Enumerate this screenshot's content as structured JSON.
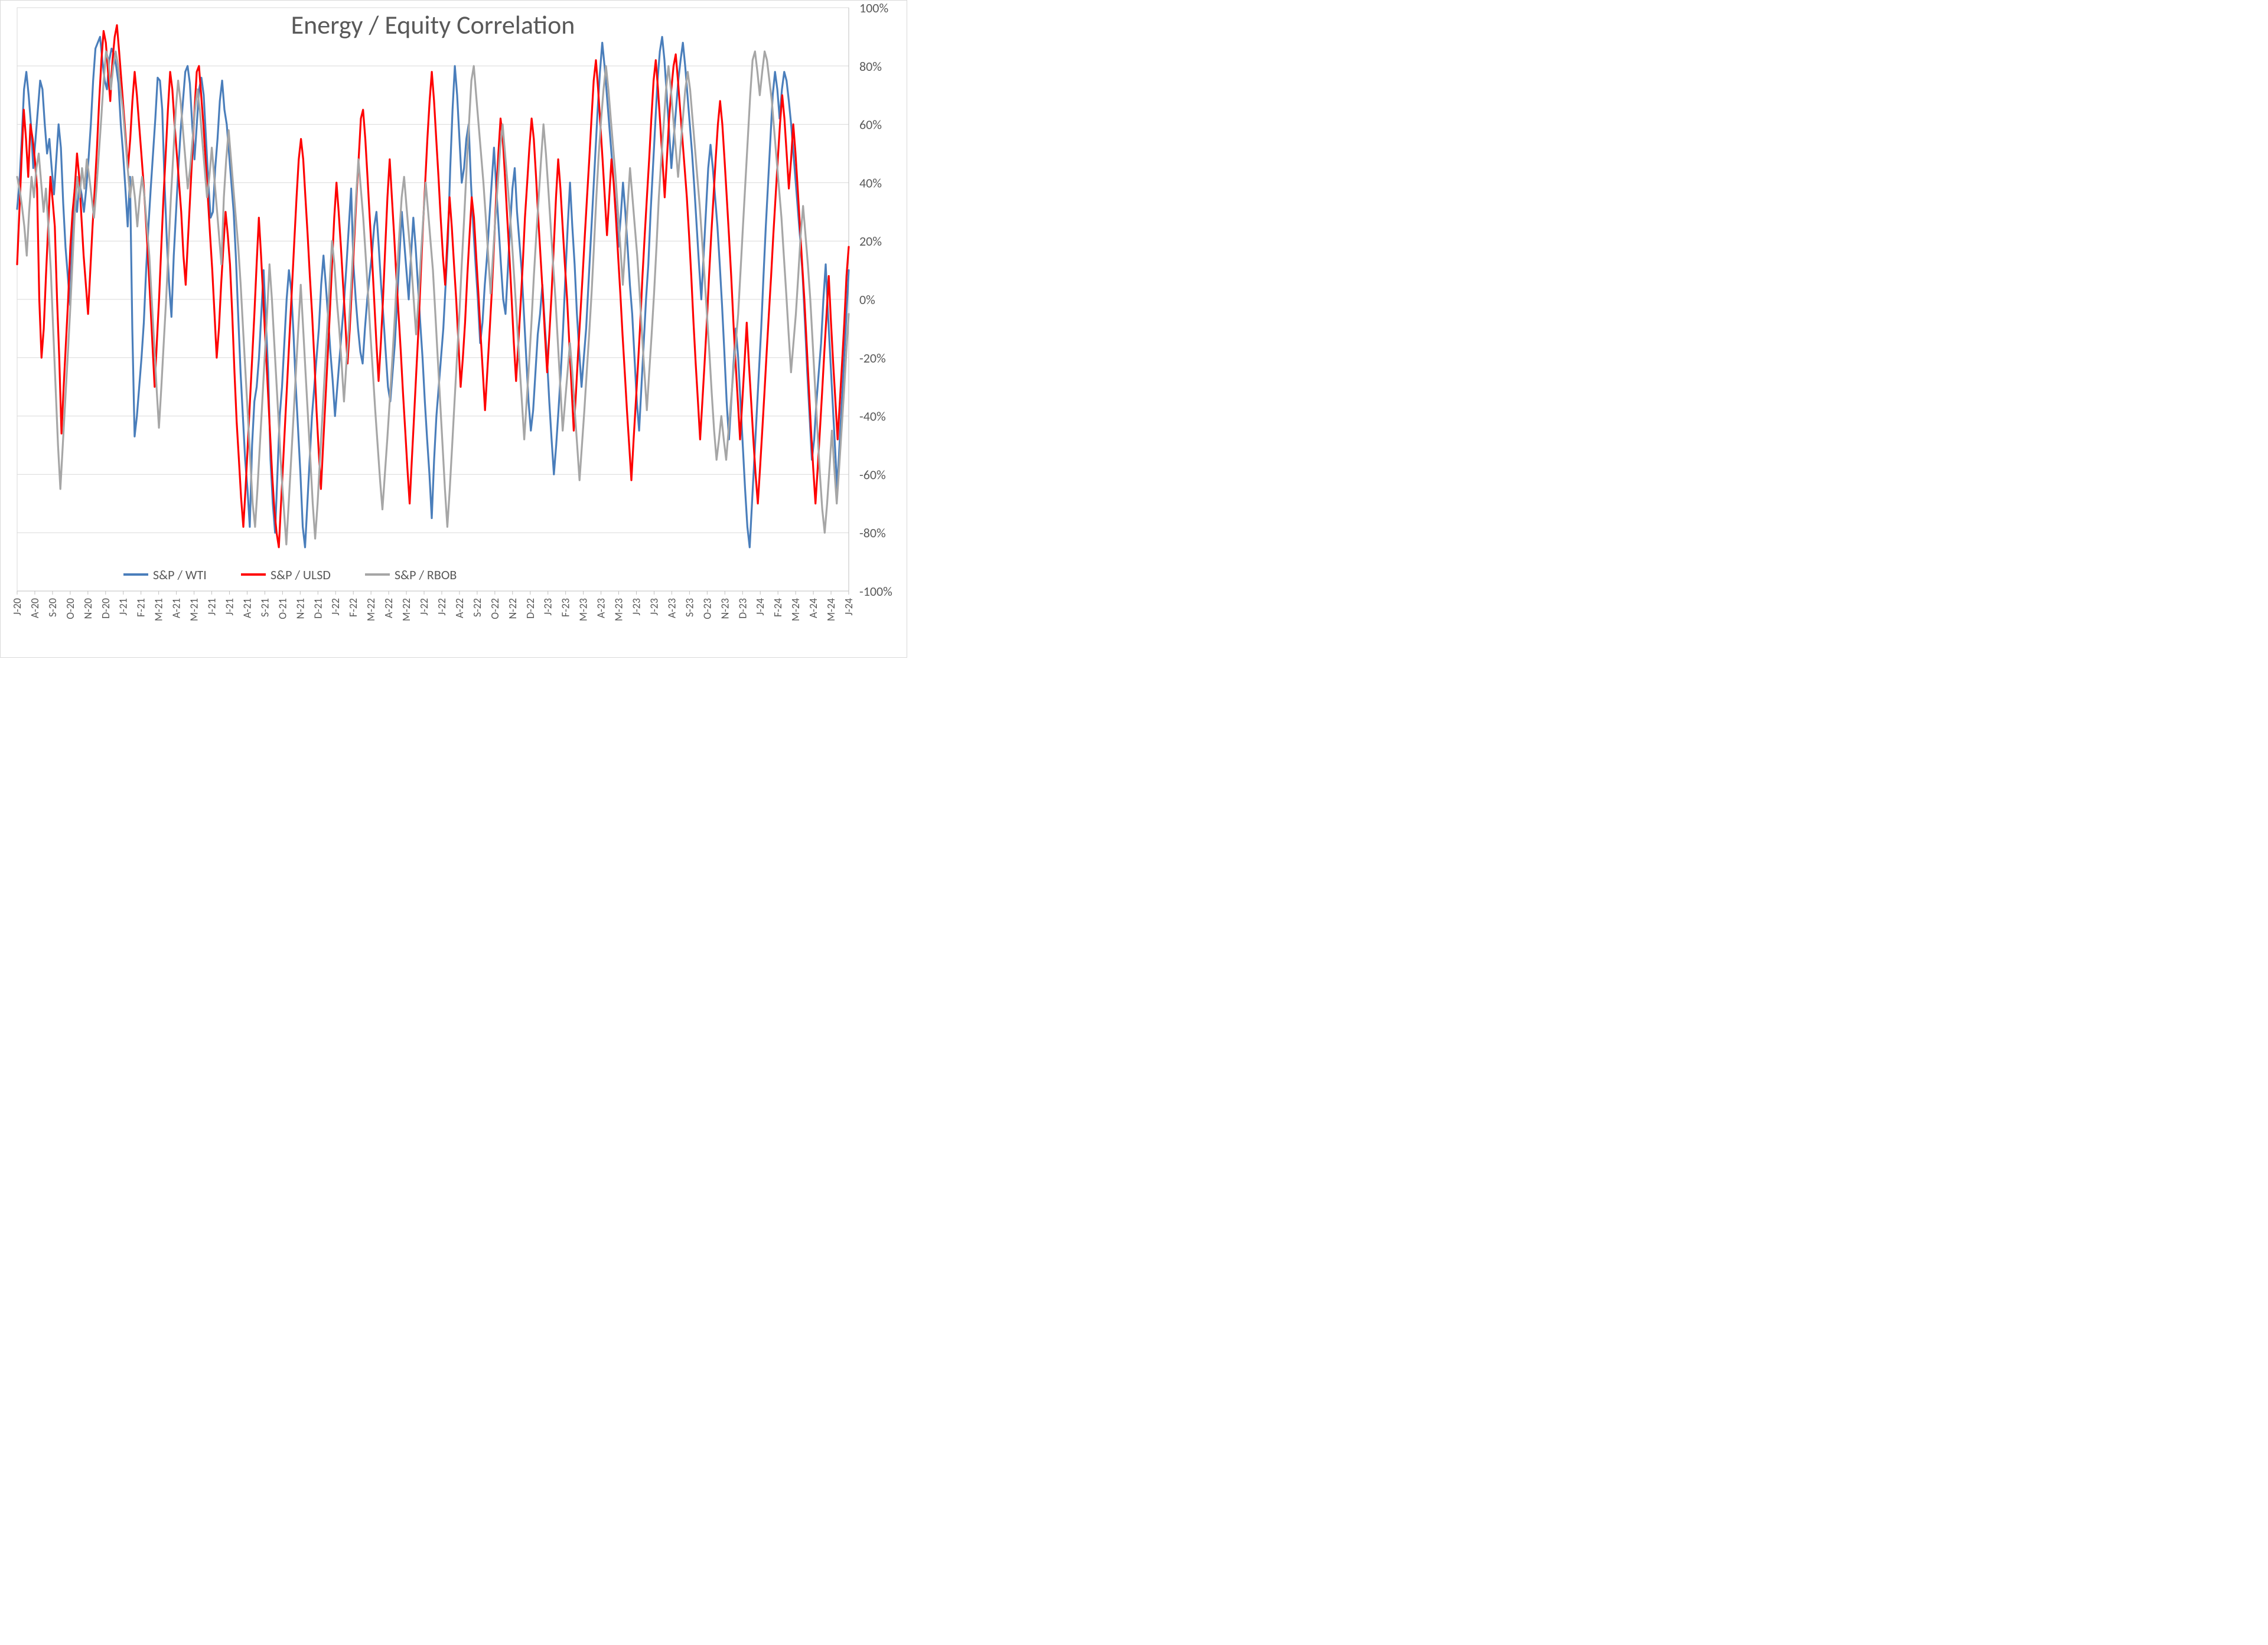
{
  "chart": {
    "type": "line",
    "title": "Energy / Equity Correlation",
    "title_fontsize": 44,
    "title_color": "#595959",
    "background_color": "#ffffff",
    "plot_border_color": "#d9d9d9",
    "grid_color": "#d9d9d9",
    "axis_text_color": "#595959",
    "tick_fontsize_y": 22,
    "tick_fontsize_x": 18,
    "line_width": 3.2,
    "y_axis": {
      "min": -100,
      "max": 100,
      "tick_step": 20,
      "tick_suffix": "%",
      "position": "right"
    },
    "x_axis": {
      "labels": [
        "J-20",
        "A-20",
        "S-20",
        "O-20",
        "N-20",
        "D-20",
        "J-21",
        "F-21",
        "M-21",
        "A-21",
        "M-21",
        "J-21",
        "J-21",
        "A-21",
        "S-21",
        "O-21",
        "N-21",
        "D-21",
        "J-22",
        "F-22",
        "M-22",
        "A-22",
        "M-22",
        "J-22",
        "J-22",
        "A-22",
        "S-22",
        "O-22",
        "N-22",
        "D-22",
        "J-23",
        "F-23",
        "M-23",
        "A-23",
        "M-23",
        "J-23",
        "J-23",
        "A-23",
        "S-23",
        "O-23",
        "N-23",
        "D-23",
        "J-24",
        "F-24",
        "M-24",
        "A-24",
        "M-24",
        "J-24"
      ],
      "rotation": -90
    },
    "legend": {
      "position": "bottom-inside",
      "items": [
        {
          "label": "S&P / WTI",
          "color": "#4a7ebb"
        },
        {
          "label": "S&P / ULSD",
          "color": "#ff0000"
        },
        {
          "label": "S&P / RBOB",
          "color": "#a6a6a6"
        }
      ]
    },
    "series": [
      {
        "name": "S&P / WTI",
        "color": "#4a7ebb",
        "values": [
          31,
          40,
          55,
          72,
          78,
          70,
          60,
          45,
          55,
          65,
          75,
          72,
          60,
          50,
          55,
          45,
          36,
          48,
          60,
          52,
          33,
          18,
          8,
          -2,
          22,
          38,
          30,
          40,
          36,
          30,
          38,
          48,
          60,
          75,
          86,
          88,
          90,
          82,
          75,
          72,
          82,
          86,
          84,
          80,
          74,
          60,
          50,
          38,
          25,
          42,
          -10,
          -47,
          -40,
          -30,
          -20,
          -8,
          10,
          25,
          38,
          50,
          62,
          76,
          75,
          65,
          40,
          20,
          5,
          -6,
          15,
          30,
          45,
          58,
          68,
          78,
          80,
          74,
          60,
          48,
          60,
          72,
          76,
          70,
          55,
          40,
          28,
          30,
          45,
          55,
          68,
          75,
          65,
          60,
          50,
          40,
          30,
          14,
          -6,
          -25,
          -40,
          -55,
          -65,
          -78,
          -50,
          -35,
          -30,
          -20,
          -5,
          10,
          -8,
          -25,
          -55,
          -70,
          -80,
          -60,
          -40,
          -30,
          -15,
          0,
          10,
          3,
          -12,
          -30,
          -45,
          -60,
          -78,
          -85,
          -70,
          -55,
          -40,
          -30,
          -20,
          -10,
          5,
          15,
          5,
          -6,
          -18,
          -28,
          -40,
          -30,
          -20,
          -10,
          0,
          12,
          25,
          38,
          12,
          0,
          -10,
          -18,
          -22,
          -10,
          0,
          8,
          15,
          25,
          30,
          18,
          5,
          -6,
          -18,
          -30,
          -35,
          -25,
          -15,
          0,
          15,
          30,
          20,
          10,
          0,
          15,
          28,
          18,
          5,
          -8,
          -20,
          -35,
          -48,
          -60,
          -75,
          -55,
          -40,
          -30,
          -20,
          -10,
          5,
          20,
          45,
          65,
          80,
          70,
          55,
          40,
          45,
          55,
          60,
          40,
          25,
          12,
          0,
          -15,
          -8,
          5,
          15,
          28,
          40,
          52,
          38,
          25,
          12,
          0,
          -5,
          10,
          25,
          38,
          45,
          30,
          20,
          10,
          -5,
          -20,
          -35,
          -45,
          -38,
          -25,
          -12,
          -5,
          5,
          -8,
          -20,
          -35,
          -48,
          -60,
          -50,
          -38,
          -25,
          -10,
          8,
          25,
          40,
          25,
          12,
          -5,
          -18,
          -30,
          -20,
          -10,
          5,
          20,
          35,
          50,
          65,
          78,
          88,
          80,
          70,
          60,
          50,
          40,
          30,
          18,
          28,
          40,
          30,
          18,
          5,
          -5,
          -20,
          -35,
          -45,
          -30,
          -15,
          0,
          12,
          30,
          45,
          60,
          75,
          85,
          90,
          82,
          70,
          58,
          45,
          55,
          65,
          75,
          82,
          88,
          80,
          70,
          60,
          50,
          38,
          25,
          12,
          0,
          15,
          30,
          45,
          53,
          45,
          35,
          25,
          12,
          -2,
          -18,
          -35,
          -48,
          -35,
          -22,
          -10,
          -20,
          -35,
          -50,
          -65,
          -78,
          -85,
          -70,
          -55,
          -40,
          -25,
          -10,
          8,
          25,
          40,
          55,
          70,
          78,
          72,
          62,
          72,
          78,
          75,
          68,
          60,
          50,
          40,
          30,
          20,
          8,
          -8,
          -25,
          -40,
          -55,
          -48,
          -35,
          -25,
          -15,
          0,
          12,
          -5,
          -20,
          -35,
          -50,
          -65,
          -50,
          -35,
          -20,
          -5,
          10
        ]
      },
      {
        "name": "S&P / ULSD",
        "color": "#ff0000",
        "values": [
          12,
          30,
          48,
          65,
          55,
          42,
          60,
          55,
          48,
          38,
          0,
          -20,
          -10,
          8,
          25,
          42,
          34,
          25,
          0,
          -20,
          -46,
          -30,
          -15,
          0,
          18,
          30,
          38,
          50,
          42,
          28,
          15,
          5,
          -5,
          10,
          25,
          38,
          52,
          68,
          82,
          92,
          88,
          78,
          68,
          82,
          90,
          94,
          85,
          75,
          65,
          55,
          45,
          55,
          68,
          78,
          70,
          60,
          50,
          40,
          28,
          15,
          0,
          -15,
          -30,
          -15,
          0,
          18,
          35,
          50,
          65,
          78,
          72,
          60,
          50,
          40,
          30,
          15,
          5,
          20,
          35,
          50,
          65,
          78,
          80,
          70,
          60,
          48,
          35,
          22,
          10,
          -5,
          -20,
          -10,
          5,
          18,
          30,
          22,
          12,
          -5,
          -25,
          -42,
          -55,
          -68,
          -78,
          -65,
          -50,
          -35,
          -20,
          -5,
          12,
          28,
          15,
          0,
          -15,
          -30,
          -45,
          -60,
          -72,
          -80,
          -85,
          -70,
          -55,
          -40,
          -25,
          -10,
          5,
          20,
          35,
          48,
          55,
          48,
          35,
          22,
          8,
          -5,
          -20,
          -38,
          -52,
          -65,
          -50,
          -35,
          -20,
          -5,
          12,
          28,
          40,
          30,
          18,
          5,
          -8,
          -22,
          -10,
          5,
          20,
          35,
          48,
          62,
          65,
          55,
          42,
          28,
          15,
          0,
          -15,
          -28,
          -15,
          0,
          18,
          35,
          48,
          35,
          22,
          8,
          -5,
          -18,
          -32,
          -45,
          -58,
          -70,
          -55,
          -40,
          -25,
          -10,
          8,
          25,
          40,
          55,
          68,
          78,
          68,
          55,
          42,
          28,
          15,
          5,
          20,
          35,
          25,
          12,
          0,
          -15,
          -30,
          -20,
          -8,
          8,
          22,
          35,
          28,
          15,
          2,
          -12,
          -25,
          -38,
          -25,
          -12,
          2,
          18,
          35,
          50,
          62,
          55,
          42,
          28,
          15,
          0,
          -15,
          -28,
          -15,
          -2,
          12,
          28,
          40,
          52,
          62,
          55,
          42,
          28,
          15,
          2,
          -12,
          -25,
          -12,
          2,
          18,
          35,
          48,
          38,
          25,
          12,
          0,
          -15,
          -30,
          -45,
          -32,
          -18,
          -5,
          8,
          22,
          35,
          48,
          62,
          75,
          82,
          72,
          60,
          48,
          35,
          22,
          35,
          48,
          40,
          28,
          15,
          2,
          -12,
          -25,
          -38,
          -50,
          -62,
          -48,
          -35,
          -22,
          -8,
          8,
          22,
          35,
          48,
          62,
          75,
          82,
          72,
          60,
          48,
          35,
          48,
          62,
          72,
          80,
          84,
          75,
          65,
          55,
          45,
          35,
          22,
          8,
          -8,
          -22,
          -35,
          -48,
          -35,
          -22,
          -8,
          8,
          22,
          35,
          48,
          60,
          68,
          60,
          48,
          35,
          22,
          8,
          -8,
          -22,
          -35,
          -48,
          -35,
          -22,
          -8,
          -22,
          -35,
          -48,
          -60,
          -70,
          -58,
          -45,
          -32,
          -18,
          -5,
          8,
          22,
          35,
          48,
          60,
          70,
          62,
          50,
          38,
          48,
          60,
          50,
          38,
          25,
          12,
          0,
          -15,
          -30,
          -45,
          -58,
          -70,
          -58,
          -45,
          -32,
          -18,
          -5,
          8,
          -8,
          -22,
          -35,
          -48,
          -35,
          -22,
          -8,
          8,
          18
        ]
      },
      {
        "name": "S&P / RBOB",
        "color": "#a6a6a6",
        "values": [
          42,
          38,
          32,
          25,
          15,
          30,
          42,
          35,
          45,
          50,
          40,
          30,
          38,
          25,
          10,
          -10,
          -30,
          -50,
          -65,
          -50,
          -35,
          -20,
          -5,
          12,
          30,
          42,
          35,
          45,
          38,
          48,
          42,
          35,
          28,
          38,
          50,
          62,
          75,
          85,
          82,
          72,
          80,
          85,
          80,
          72,
          65,
          55,
          45,
          35,
          42,
          35,
          25,
          35,
          42,
          35,
          25,
          15,
          0,
          -15,
          -30,
          -44,
          -30,
          -15,
          0,
          18,
          35,
          50,
          65,
          75,
          68,
          58,
          48,
          38,
          45,
          55,
          65,
          72,
          65,
          55,
          45,
          35,
          42,
          52,
          42,
          32,
          22,
          12,
          35,
          48,
          58,
          48,
          38,
          28,
          18,
          5,
          -10,
          -25,
          -40,
          -55,
          -70,
          -78,
          -65,
          -50,
          -35,
          -20,
          -5,
          12,
          0,
          -15,
          -30,
          -45,
          -60,
          -72,
          -84,
          -70,
          -55,
          -40,
          -25,
          -10,
          5,
          -10,
          -25,
          -40,
          -55,
          -70,
          -82,
          -70,
          -55,
          -40,
          -25,
          -10,
          5,
          20,
          12,
          0,
          -10,
          -22,
          -35,
          -22,
          -10,
          5,
          20,
          35,
          48,
          38,
          28,
          15,
          2,
          -12,
          -25,
          -38,
          -50,
          -62,
          -72,
          -60,
          -48,
          -35,
          -22,
          -8,
          8,
          22,
          35,
          42,
          32,
          22,
          12,
          0,
          -12,
          0,
          15,
          28,
          40,
          30,
          20,
          10,
          -5,
          -20,
          -35,
          -50,
          -65,
          -78,
          -65,
          -50,
          -35,
          -20,
          -5,
          12,
          28,
          45,
          60,
          75,
          80,
          70,
          60,
          50,
          40,
          28,
          15,
          2,
          15,
          28,
          40,
          52,
          60,
          50,
          40,
          30,
          18,
          5,
          -8,
          -22,
          -35,
          -48,
          -35,
          -22,
          -8,
          8,
          22,
          35,
          48,
          60,
          50,
          38,
          25,
          12,
          0,
          -15,
          -30,
          -45,
          -35,
          -25,
          -15,
          -25,
          -38,
          -50,
          -62,
          -50,
          -38,
          -25,
          -12,
          2,
          18,
          35,
          50,
          62,
          72,
          80,
          72,
          62,
          52,
          42,
          30,
          18,
          5,
          18,
          32,
          45,
          35,
          25,
          15,
          2,
          -12,
          -25,
          -38,
          -25,
          -12,
          2,
          18,
          35,
          48,
          60,
          72,
          80,
          72,
          62,
          52,
          42,
          52,
          62,
          72,
          78,
          72,
          62,
          52,
          42,
          32,
          20,
          8,
          -5,
          -18,
          -32,
          -45,
          -55,
          -48,
          -40,
          -48,
          -55,
          -45,
          -35,
          -25,
          -15,
          -5,
          10,
          25,
          40,
          55,
          70,
          82,
          85,
          78,
          70,
          78,
          85,
          82,
          75,
          68,
          58,
          48,
          38,
          28,
          15,
          2,
          -12,
          -25,
          -15,
          -5,
          8,
          22,
          32,
          22,
          12,
          0,
          -15,
          -30,
          -45,
          -60,
          -72,
          -80,
          -70,
          -58,
          -45,
          -58,
          -70,
          -58,
          -45,
          -32,
          -18,
          -5
        ]
      }
    ]
  }
}
